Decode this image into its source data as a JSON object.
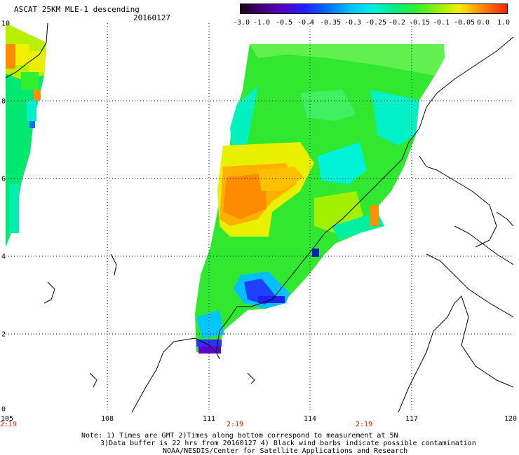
{
  "header": {
    "title": "ASCAT 25KM MLE-1 descending",
    "date": "20160127"
  },
  "colorbar": {
    "labels": [
      "-3.0",
      "-1.0",
      "-0.5",
      "-0.4",
      "-0.35",
      "-0.3",
      "-0.25",
      "-0.2",
      "-0.15",
      "-0.1",
      "-0.05",
      "0.0",
      "1.0"
    ],
    "colors": [
      "#20001a",
      "#5a00a8",
      "#2020ff",
      "#0060ff",
      "#00a8ff",
      "#00e8e8",
      "#00f0a0",
      "#30f030",
      "#a0f000",
      "#f0f000",
      "#ff9000",
      "#ff3000"
    ]
  },
  "axes": {
    "x_ticks": [
      "105",
      "108",
      "111",
      "114",
      "117",
      "120"
    ],
    "y_ticks": [
      "10",
      "8",
      "6",
      "4",
      "2",
      "0"
    ],
    "time_ticks": [
      "2:19",
      "2:19",
      "2:19"
    ]
  },
  "notes": {
    "line1": "Note: 1) Times are GMT 2)Times along bottom correspond to measurement at 5N",
    "line2": "3)Data buffer is 22 hrs from 20160127 4) Black wind barbs indicate possible contamination",
    "line3": "NOAA/NESDIS/Center for Satellite Applications and Research"
  }
}
